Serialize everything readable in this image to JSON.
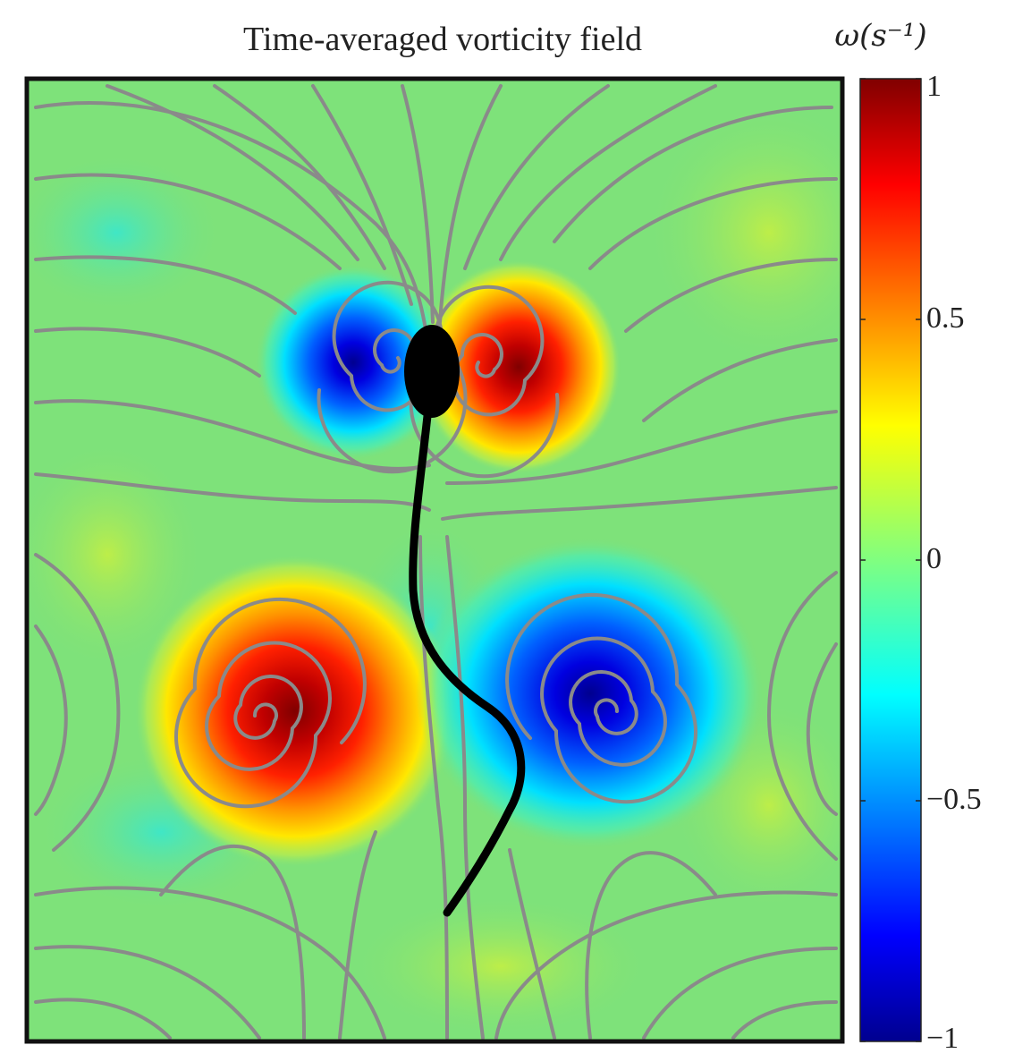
{
  "chart_data": {
    "type": "heatmap",
    "title": "Time-averaged vorticity field",
    "colorbar": {
      "label": "ω(s⁻¹)",
      "range": [
        -1,
        1
      ],
      "ticks": [
        {
          "value": 1,
          "label": "1"
        },
        {
          "value": 0.5,
          "label": "0.5"
        },
        {
          "value": 0,
          "label": "0"
        },
        {
          "value": -0.5,
          "label": "−0.5"
        },
        {
          "value": -1,
          "label": "−1"
        }
      ],
      "colormap": "jet"
    },
    "background_value": 0.02,
    "vortices": [
      {
        "name": "upper-left",
        "sign": -1,
        "peak": -0.9
      },
      {
        "name": "upper-right",
        "sign": 1,
        "peak": 0.85
      },
      {
        "name": "lower-left",
        "sign": 1,
        "peak": 0.95
      },
      {
        "name": "lower-right",
        "sign": -1,
        "peak": -0.95
      }
    ],
    "streamlines": true,
    "swimmer": {
      "head": "ellipse",
      "tail": "flagellum"
    }
  },
  "colors": {
    "jet": [
      "#00008f",
      "#0000ff",
      "#00ffff",
      "#80ff80",
      "#ffff00",
      "#ff0000",
      "#800000"
    ],
    "background": "#7ee27a",
    "streamline": "#8a8a8a",
    "frame": "#111111",
    "swimmer": "#000000"
  }
}
